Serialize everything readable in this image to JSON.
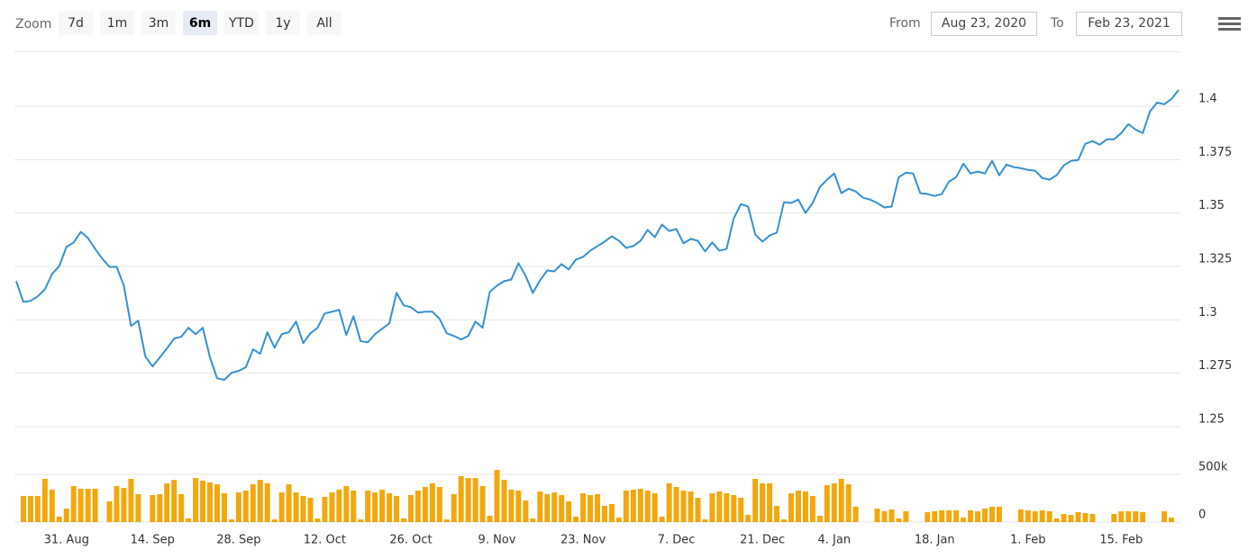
{
  "range_selector": {
    "label": "Zoom",
    "buttons": [
      "7d",
      "1m",
      "3m",
      "6m",
      "YTD",
      "1y",
      "All"
    ],
    "selected": "6m"
  },
  "input_range": {
    "from_label": "From",
    "from": "Aug 23, 2020",
    "to_label": "To",
    "to": "Feb 23, 2021"
  },
  "chart_data": [
    {
      "type": "line",
      "color": "#3591d1",
      "values": [
        1.3181,
        1.3084,
        1.3089,
        1.311,
        1.3143,
        1.3215,
        1.3252,
        1.3341,
        1.3362,
        1.3412,
        1.3383,
        1.3332,
        1.3286,
        1.3248,
        1.3248,
        1.316,
        1.2971,
        1.2996,
        1.2828,
        1.2782,
        1.2824,
        1.2866,
        1.2912,
        1.2921,
        1.2963,
        1.2933,
        1.2963,
        1.2824,
        1.2727,
        1.2719,
        1.2752,
        1.2761,
        1.2778,
        1.2862,
        1.2841,
        1.2942,
        1.287,
        1.2933,
        1.2942,
        1.2992,
        1.2891,
        1.2937,
        1.2963,
        1.303,
        1.3038,
        1.3047,
        1.2929,
        1.3017,
        1.29,
        1.2895,
        1.2933,
        1.2958,
        1.2984,
        1.3126,
        1.3068,
        1.3059,
        1.3034,
        1.3038,
        1.3038,
        1.3005,
        1.2937,
        1.2925,
        1.2908,
        1.2925,
        1.2992,
        1.2963,
        1.3131,
        1.316,
        1.3181,
        1.3189,
        1.3265,
        1.3206,
        1.3126,
        1.3185,
        1.3231,
        1.3227,
        1.3261,
        1.3236,
        1.3282,
        1.3295,
        1.3324,
        1.3345,
        1.3366,
        1.3391,
        1.337,
        1.3337,
        1.3345,
        1.337,
        1.3421,
        1.3387,
        1.3446,
        1.3416,
        1.3425,
        1.3358,
        1.3379,
        1.337,
        1.332,
        1.3362,
        1.3324,
        1.3332,
        1.3475,
        1.3542,
        1.353,
        1.34,
        1.3366,
        1.3395,
        1.3408,
        1.3551,
        1.3547,
        1.3563,
        1.35,
        1.3547,
        1.3622,
        1.3656,
        1.3685,
        1.3593,
        1.3614,
        1.3601,
        1.3572,
        1.3563,
        1.3547,
        1.3526,
        1.353,
        1.3668,
        1.3689,
        1.3685,
        1.3593,
        1.3589,
        1.358,
        1.3589,
        1.3647,
        1.3668,
        1.3731,
        1.3685,
        1.3694,
        1.3685,
        1.3744,
        1.3677,
        1.3727,
        1.3715,
        1.371,
        1.3702,
        1.3698,
        1.3664,
        1.3656,
        1.3677,
        1.3723,
        1.3744,
        1.3748,
        1.3824,
        1.3837,
        1.382,
        1.3845,
        1.3845,
        1.3874,
        1.3916,
        1.3891,
        1.3874,
        1.3975,
        1.4017,
        1.4009,
        1.4034,
        1.4076
      ],
      "ylim": [
        1.25,
        1.4257
      ],
      "yticks": [
        1.25,
        1.275,
        1.3,
        1.325,
        1.35,
        1.375,
        1.4
      ],
      "grid": true
    },
    {
      "type": "bar",
      "color": "#f2a80c",
      "categories": [
        null,
        null,
        null,
        null,
        null,
        null,
        null,
        "31. Aug",
        null,
        null,
        null,
        null,
        null,
        null,
        null,
        null,
        null,
        null,
        null,
        "14. Sep",
        null,
        null,
        null,
        null,
        null,
        null,
        null,
        null,
        null,
        null,
        null,
        "28. Sep",
        null,
        null,
        null,
        null,
        null,
        null,
        null,
        null,
        null,
        null,
        null,
        "12. Oct",
        null,
        null,
        null,
        null,
        null,
        null,
        null,
        null,
        null,
        null,
        null,
        "26. Oct",
        null,
        null,
        null,
        null,
        null,
        null,
        null,
        null,
        null,
        null,
        null,
        "9. Nov",
        null,
        null,
        null,
        null,
        null,
        null,
        null,
        null,
        null,
        null,
        null,
        "23. Nov",
        null,
        null,
        null,
        null,
        null,
        null,
        null,
        null,
        null,
        null,
        null,
        null,
        "7. Dec",
        null,
        null,
        null,
        null,
        null,
        null,
        null,
        null,
        null,
        null,
        null,
        "21. Dec",
        null,
        null,
        null,
        null,
        null,
        null,
        null,
        null,
        null,
        "4. Jan",
        null,
        null,
        null,
        null,
        null,
        null,
        null,
        null,
        null,
        null,
        null,
        null,
        null,
        "18. Jan",
        null,
        null,
        null,
        null,
        null,
        null,
        null,
        null,
        null,
        null,
        null,
        null,
        "1. Feb",
        null,
        null,
        null,
        null,
        null,
        null,
        null,
        null,
        null,
        null,
        null,
        null,
        "15. Feb",
        null,
        null,
        null,
        null,
        null,
        null,
        null,
        null
      ],
      "values": [
        null,
        274000,
        274000,
        274000,
        453000,
        340000,
        57000,
        142000,
        377000,
        349000,
        349000,
        349000,
        null,
        217000,
        377000,
        358000,
        453000,
        292000,
        null,
        283000,
        292000,
        406000,
        443000,
        292000,
        38000,
        462000,
        434000,
        415000,
        396000,
        302000,
        28000,
        311000,
        330000,
        396000,
        443000,
        406000,
        28000,
        311000,
        396000,
        311000,
        274000,
        255000,
        38000,
        264000,
        311000,
        340000,
        377000,
        330000,
        28000,
        330000,
        311000,
        340000,
        302000,
        274000,
        38000,
        283000,
        330000,
        368000,
        406000,
        368000,
        28000,
        292000,
        481000,
        462000,
        462000,
        377000,
        66000,
        547000,
        443000,
        340000,
        330000,
        226000,
        38000,
        321000,
        292000,
        311000,
        283000,
        217000,
        57000,
        302000,
        283000,
        292000,
        170000,
        189000,
        47000,
        330000,
        340000,
        349000,
        330000,
        302000,
        57000,
        406000,
        368000,
        330000,
        321000,
        255000,
        28000,
        302000,
        321000,
        302000,
        283000,
        255000,
        75000,
        453000,
        406000,
        406000,
        170000,
        28000,
        302000,
        330000,
        321000,
        274000,
        66000,
        387000,
        406000,
        453000,
        396000,
        160000,
        null,
        null,
        142000,
        113000,
        132000,
        38000,
        113000,
        null,
        null,
        104000,
        113000,
        123000,
        123000,
        123000,
        47000,
        123000,
        113000,
        142000,
        160000,
        160000,
        null,
        null,
        132000,
        123000,
        113000,
        123000,
        113000,
        38000,
        85000,
        75000,
        104000,
        94000,
        85000,
        null,
        null,
        85000,
        113000,
        113000,
        113000,
        104000,
        null,
        null,
        113000,
        47000,
        null
      ],
      "ylim": [
        0,
        1000000
      ],
      "yticks": [
        0,
        {
          "value": 500000,
          "label": "500k"
        }
      ],
      "grid": true
    }
  ]
}
